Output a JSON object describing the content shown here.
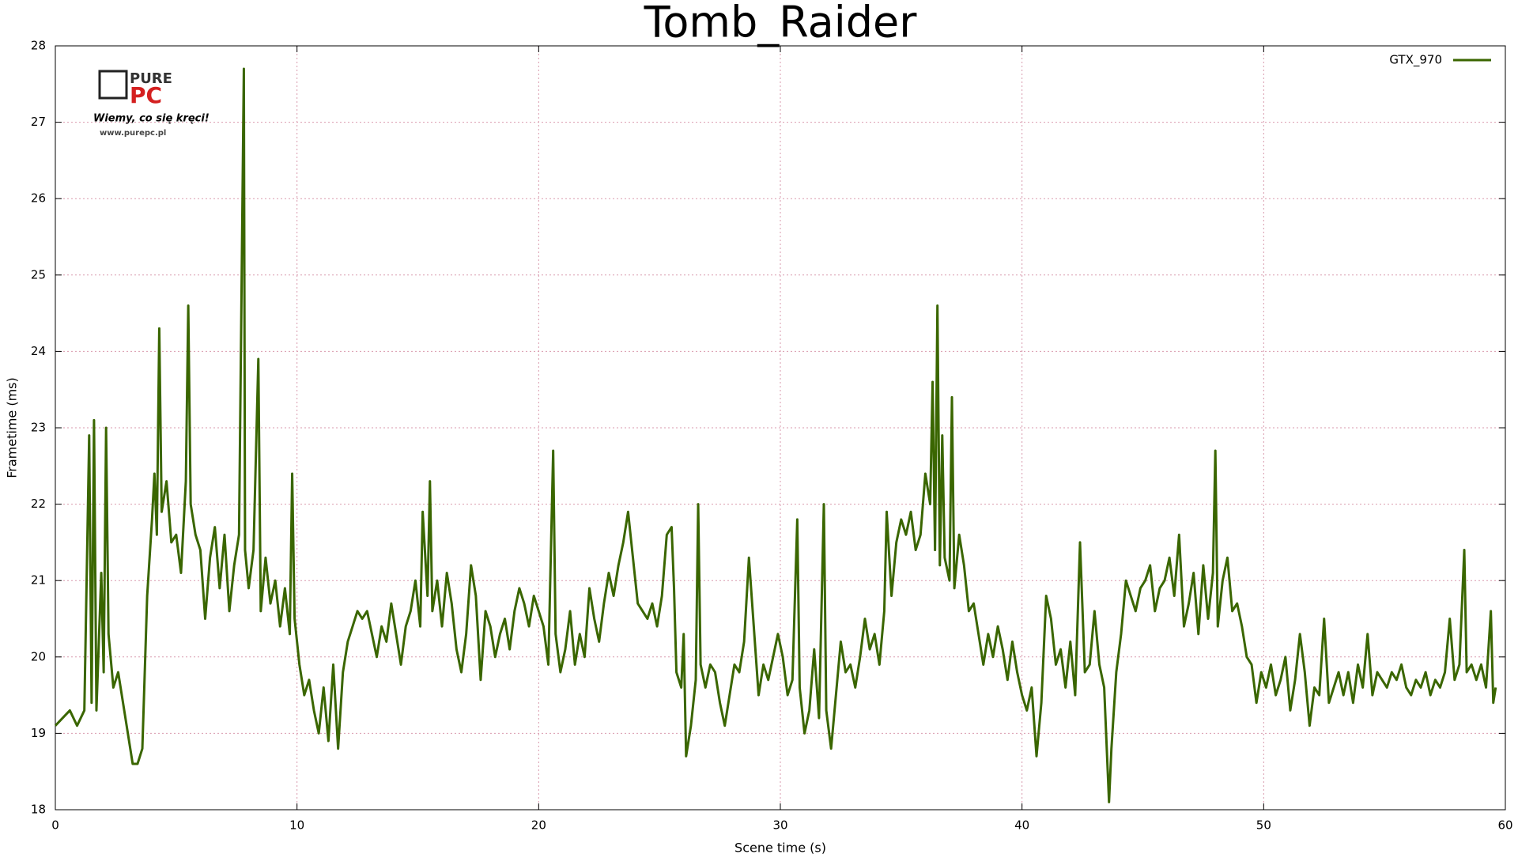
{
  "chart_data": {
    "type": "line",
    "title": "Tomb_Raider",
    "x_label": "Scene time (s)",
    "y_label": "Frametime (ms)",
    "xlim": [
      0,
      60
    ],
    "ylim": [
      18,
      28
    ],
    "xticks": [
      0,
      10,
      20,
      30,
      40,
      50,
      60
    ],
    "yticks": [
      18,
      19,
      20,
      21,
      22,
      23,
      24,
      25,
      26,
      27,
      28
    ],
    "grid": true,
    "legend": "upper right",
    "x": [
      0,
      0.3,
      0.6,
      0.9,
      1.2,
      1.4,
      1.5,
      1.6,
      1.7,
      1.9,
      2.0,
      2.1,
      2.2,
      2.4,
      2.6,
      2.8,
      3.0,
      3.2,
      3.4,
      3.6,
      3.8,
      4.0,
      4.1,
      4.2,
      4.3,
      4.4,
      4.6,
      4.8,
      5.0,
      5.2,
      5.4,
      5.5,
      5.6,
      5.8,
      6.0,
      6.2,
      6.4,
      6.6,
      6.8,
      7.0,
      7.2,
      7.4,
      7.6,
      7.8,
      7.85,
      8.0,
      8.2,
      8.4,
      8.5,
      8.7,
      8.9,
      9.1,
      9.3,
      9.5,
      9.7,
      9.8,
      9.9,
      10.1,
      10.3,
      10.5,
      10.7,
      10.9,
      11.1,
      11.3,
      11.5,
      11.7,
      11.9,
      12.1,
      12.3,
      12.5,
      12.7,
      12.9,
      13.1,
      13.3,
      13.5,
      13.7,
      13.9,
      14.1,
      14.3,
      14.5,
      14.7,
      14.9,
      15.1,
      15.2,
      15.4,
      15.5,
      15.6,
      15.8,
      16.0,
      16.2,
      16.4,
      16.6,
      16.8,
      17.0,
      17.2,
      17.4,
      17.6,
      17.8,
      18.0,
      18.2,
      18.4,
      18.6,
      18.8,
      19.0,
      19.2,
      19.4,
      19.6,
      19.8,
      20.0,
      20.2,
      20.4,
      20.6,
      20.7,
      20.9,
      21.1,
      21.3,
      21.5,
      21.7,
      21.9,
      22.1,
      22.3,
      22.5,
      22.7,
      22.9,
      23.1,
      23.3,
      23.5,
      23.7,
      23.9,
      24.1,
      24.3,
      24.5,
      24.7,
      24.9,
      25.1,
      25.3,
      25.5,
      25.6,
      25.7,
      25.9,
      26.0,
      26.1,
      26.3,
      26.5,
      26.6,
      26.7,
      26.9,
      27.1,
      27.3,
      27.5,
      27.7,
      27.9,
      28.1,
      28.3,
      28.5,
      28.7,
      28.9,
      29.1,
      29.3,
      29.5,
      29.7,
      29.9,
      30.1,
      30.3,
      30.5,
      30.7,
      30.8,
      31.0,
      31.2,
      31.4,
      31.6,
      31.8,
      31.9,
      32.1,
      32.3,
      32.5,
      32.7,
      32.9,
      33.1,
      33.3,
      33.5,
      33.7,
      33.9,
      34.1,
      34.3,
      34.4,
      34.6,
      34.8,
      35.0,
      35.2,
      35.4,
      35.6,
      35.8,
      36.0,
      36.2,
      36.3,
      36.4,
      36.5,
      36.6,
      36.7,
      36.8,
      37.0,
      37.1,
      37.2,
      37.4,
      37.6,
      37.8,
      38.0,
      38.2,
      38.4,
      38.6,
      38.8,
      39.0,
      39.2,
      39.4,
      39.6,
      39.8,
      40.0,
      40.2,
      40.4,
      40.6,
      40.8,
      41.0,
      41.2,
      41.4,
      41.6,
      41.8,
      42.0,
      42.2,
      42.4,
      42.6,
      42.8,
      43.0,
      43.2,
      43.4,
      43.6,
      43.7,
      43.9,
      44.1,
      44.3,
      44.5,
      44.7,
      44.9,
      45.1,
      45.3,
      45.5,
      45.7,
      45.9,
      46.1,
      46.3,
      46.5,
      46.7,
      46.9,
      47.1,
      47.3,
      47.5,
      47.7,
      47.9,
      48.0,
      48.1,
      48.3,
      48.5,
      48.7,
      48.9,
      49.1,
      49.3,
      49.5,
      49.7,
      49.9,
      50.1,
      50.3,
      50.5,
      50.7,
      50.9,
      51.1,
      51.3,
      51.5,
      51.7,
      51.9,
      52.1,
      52.3,
      52.5,
      52.7,
      52.9,
      53.1,
      53.3,
      53.5,
      53.7,
      53.9,
      54.1,
      54.3,
      54.5,
      54.7,
      54.9,
      55.1,
      55.3,
      55.5,
      55.7,
      55.9,
      56.1,
      56.3,
      56.5,
      56.7,
      56.9,
      57.1,
      57.3,
      57.5,
      57.7,
      57.9,
      58.1,
      58.3,
      58.4,
      58.6,
      58.8,
      59.0,
      59.2,
      59.4,
      59.5,
      59.6
    ],
    "series": [
      {
        "name": "GTX_970",
        "color": "#3a6600",
        "values": [
          19.1,
          19.2,
          19.3,
          19.1,
          19.3,
          22.9,
          19.4,
          23.1,
          19.3,
          21.1,
          19.8,
          23.0,
          20.3,
          19.6,
          19.8,
          19.4,
          19.0,
          18.6,
          18.6,
          18.8,
          20.8,
          21.8,
          22.4,
          21.6,
          24.3,
          21.9,
          22.3,
          21.5,
          21.6,
          21.1,
          22.3,
          24.6,
          22.0,
          21.6,
          21.4,
          20.5,
          21.3,
          21.7,
          20.9,
          21.6,
          20.6,
          21.2,
          21.6,
          27.7,
          21.4,
          20.9,
          21.4,
          23.9,
          20.6,
          21.3,
          20.7,
          21.0,
          20.4,
          20.9,
          20.3,
          22.4,
          20.5,
          19.9,
          19.5,
          19.7,
          19.3,
          19.0,
          19.6,
          18.9,
          19.9,
          18.8,
          19.8,
          20.2,
          20.4,
          20.6,
          20.5,
          20.6,
          20.3,
          20.0,
          20.4,
          20.2,
          20.7,
          20.3,
          19.9,
          20.4,
          20.6,
          21.0,
          20.4,
          21.9,
          20.8,
          22.3,
          20.6,
          21.0,
          20.4,
          21.1,
          20.7,
          20.1,
          19.8,
          20.3,
          21.2,
          20.8,
          19.7,
          20.6,
          20.4,
          20.0,
          20.3,
          20.5,
          20.1,
          20.6,
          20.9,
          20.7,
          20.4,
          20.8,
          20.6,
          20.4,
          19.9,
          22.7,
          20.3,
          19.8,
          20.1,
          20.6,
          19.9,
          20.3,
          20.0,
          20.9,
          20.5,
          20.2,
          20.7,
          21.1,
          20.8,
          21.2,
          21.5,
          21.9,
          21.3,
          20.7,
          20.6,
          20.5,
          20.7,
          20.4,
          20.8,
          21.6,
          21.7,
          20.9,
          19.8,
          19.6,
          20.3,
          18.7,
          19.1,
          19.7,
          22.0,
          19.9,
          19.6,
          19.9,
          19.8,
          19.4,
          19.1,
          19.5,
          19.9,
          19.8,
          20.2,
          21.3,
          20.4,
          19.5,
          19.9,
          19.7,
          20.0,
          20.3,
          20.0,
          19.5,
          19.7,
          21.8,
          19.6,
          19.0,
          19.3,
          20.1,
          19.2,
          22.0,
          19.3,
          18.8,
          19.5,
          20.2,
          19.8,
          19.9,
          19.6,
          20.0,
          20.5,
          20.1,
          20.3,
          19.9,
          20.6,
          21.9,
          20.8,
          21.5,
          21.8,
          21.6,
          21.9,
          21.4,
          21.6,
          22.4,
          22.0,
          23.6,
          21.4,
          24.6,
          21.2,
          22.9,
          21.3,
          21.0,
          23.4,
          20.9,
          21.6,
          21.2,
          20.6,
          20.7,
          20.3,
          19.9,
          20.3,
          20.0,
          20.4,
          20.1,
          19.7,
          20.2,
          19.8,
          19.5,
          19.3,
          19.6,
          18.7,
          19.4,
          20.8,
          20.5,
          19.9,
          20.1,
          19.6,
          20.2,
          19.5,
          21.5,
          19.8,
          19.9,
          20.6,
          19.9,
          19.6,
          18.1,
          18.8,
          19.8,
          20.3,
          21.0,
          20.8,
          20.6,
          20.9,
          21.0,
          21.2,
          20.6,
          20.9,
          21.0,
          21.3,
          20.8,
          21.6,
          20.4,
          20.7,
          21.1,
          20.3,
          21.2,
          20.5,
          21.1,
          22.7,
          20.4,
          21.0,
          21.3,
          20.6,
          20.7,
          20.4,
          20.0,
          19.9,
          19.4,
          19.8,
          19.6,
          19.9,
          19.5,
          19.7,
          20.0,
          19.3,
          19.7,
          20.3,
          19.8,
          19.1,
          19.6,
          19.5,
          20.5,
          19.4,
          19.6,
          19.8,
          19.5,
          19.8,
          19.4,
          19.9,
          19.6,
          20.3,
          19.5,
          19.8,
          19.7,
          19.6,
          19.8,
          19.7,
          19.9,
          19.6,
          19.5,
          19.7,
          19.6,
          19.8,
          19.5,
          19.7,
          19.6,
          19.8,
          20.5,
          19.7,
          19.9,
          21.4,
          19.8,
          19.9,
          19.7,
          19.9,
          19.6,
          20.6,
          19.4,
          19.6
        ]
      }
    ]
  },
  "logo": {
    "brand_top": "PURE",
    "brand_bottom": "PC",
    "slogan": "Wiemy, co się kręci!",
    "url": "www.purepc.pl"
  }
}
